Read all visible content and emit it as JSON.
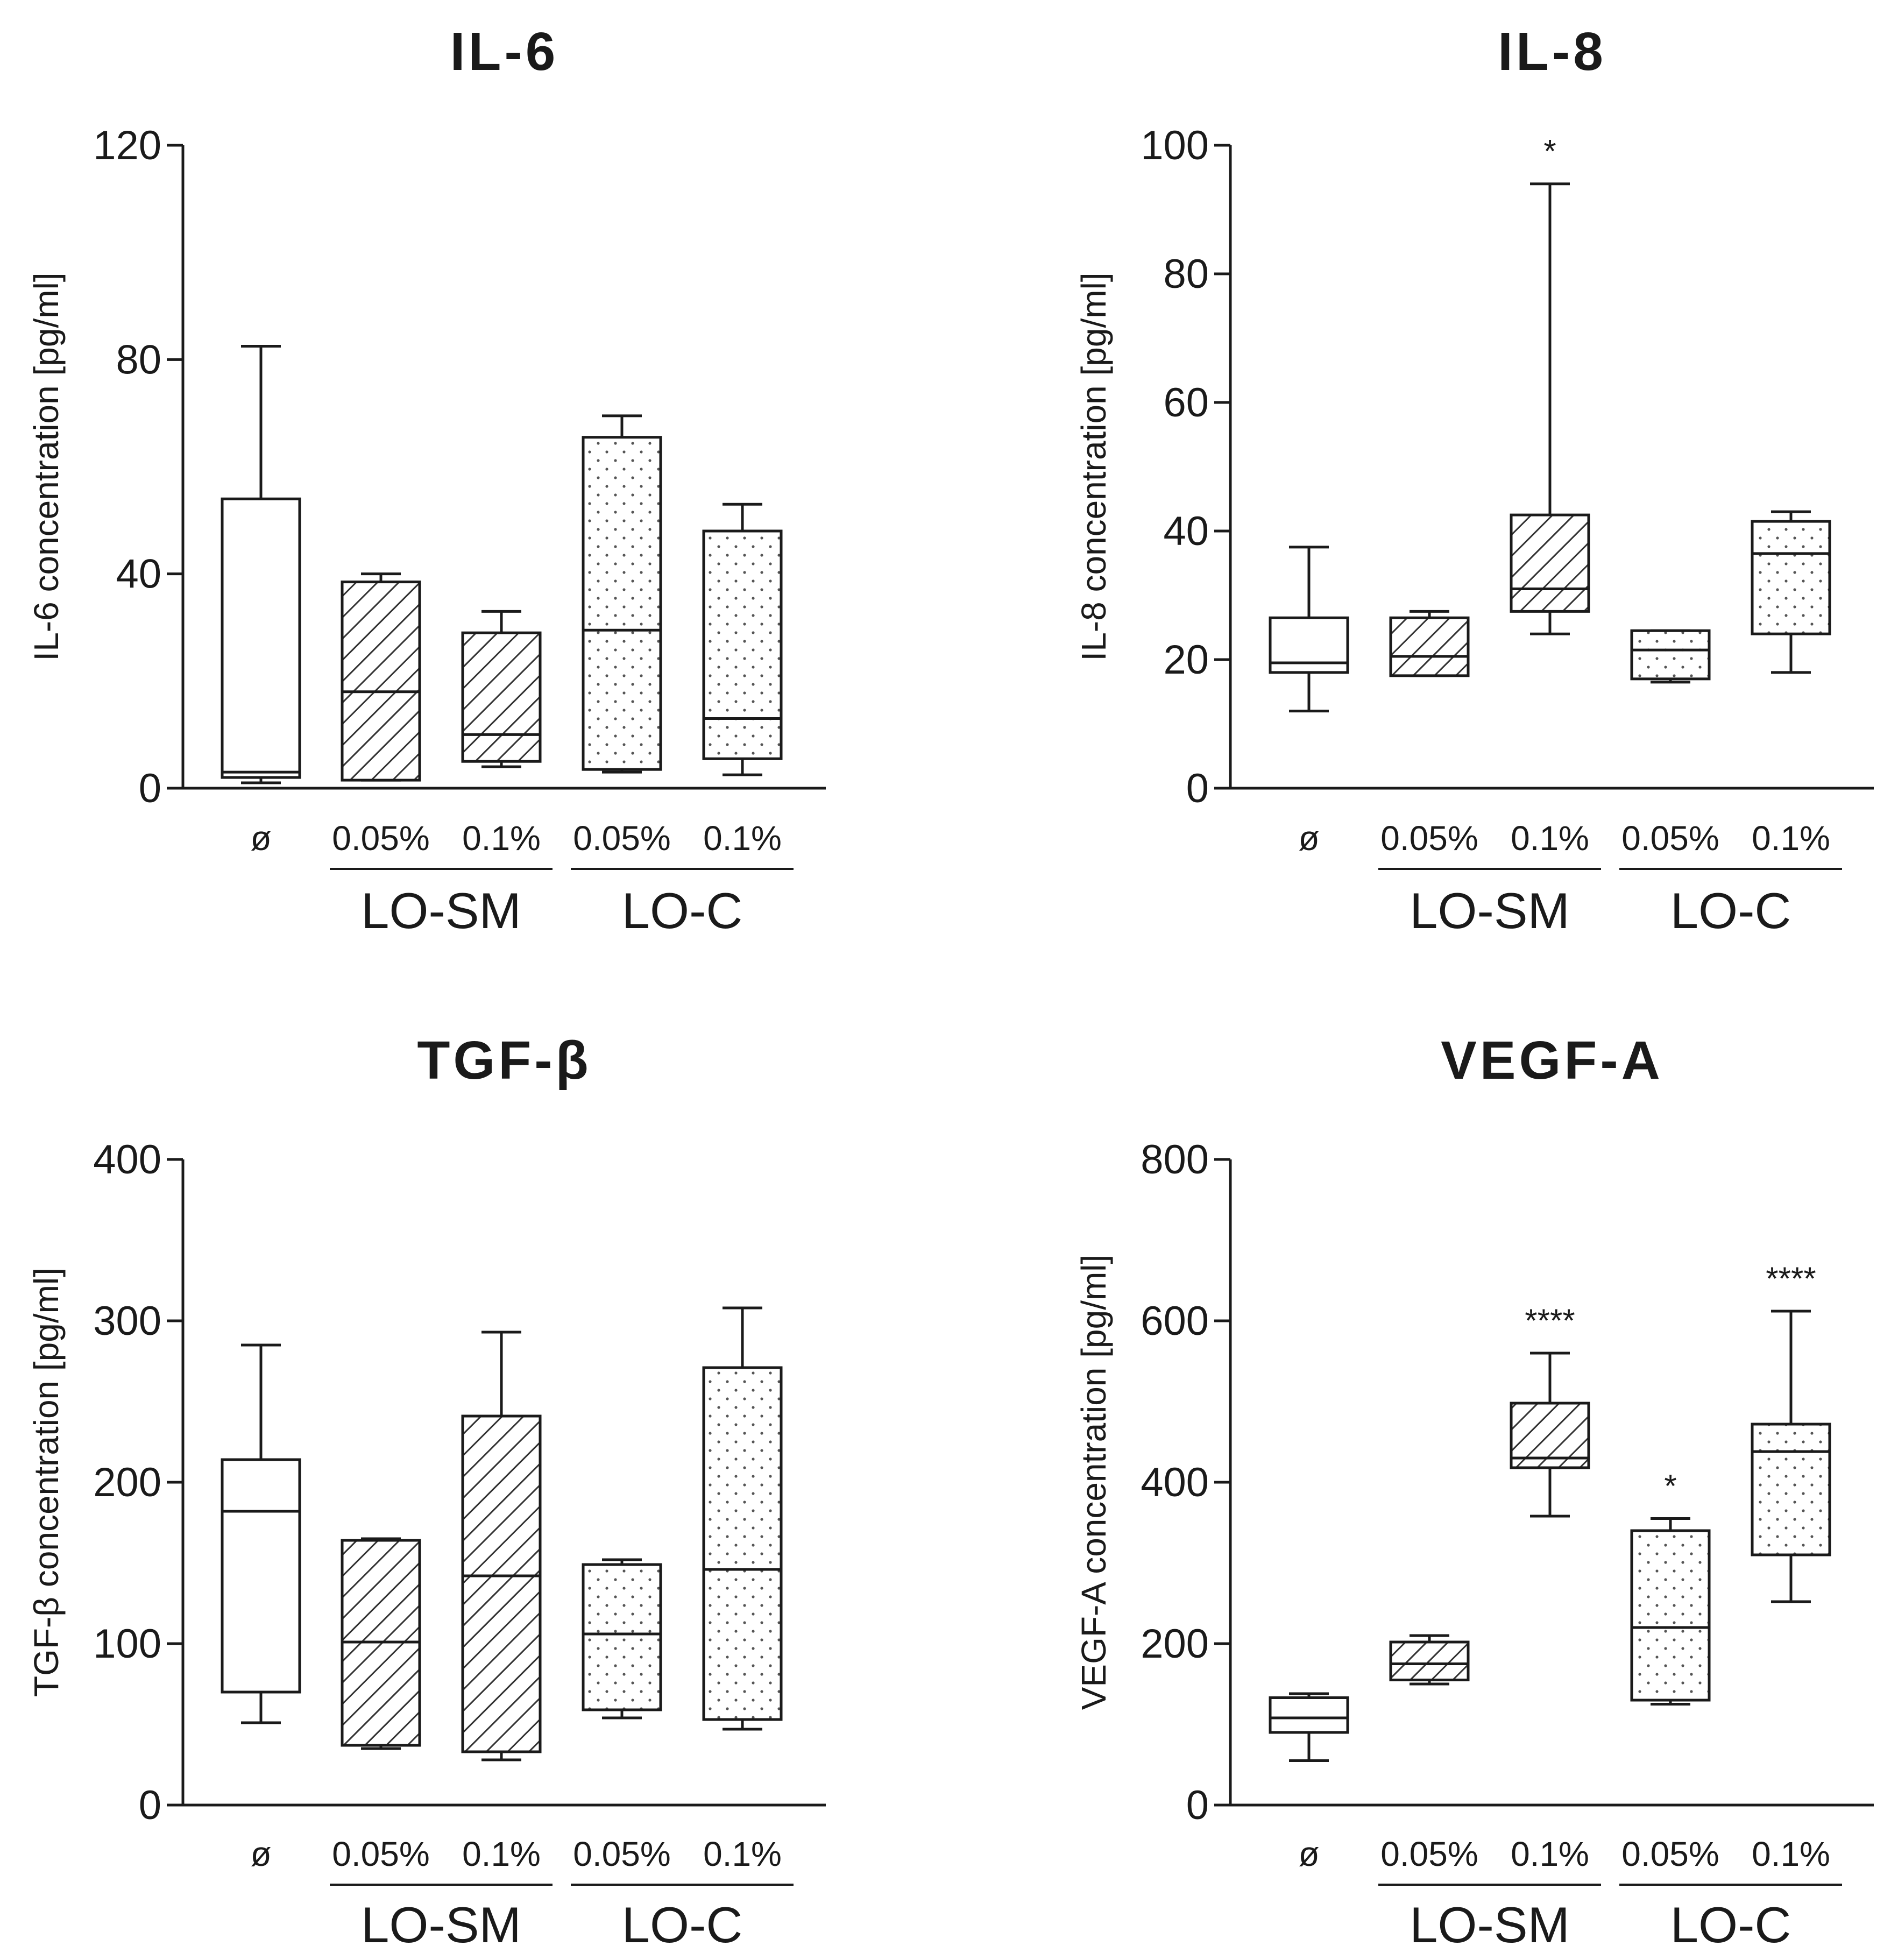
{
  "colors": {
    "ink": "#1a1a1a",
    "background": "#ffffff"
  },
  "chart_data": [
    {
      "type": "box",
      "title": "IL-6",
      "ylabel": "IL-6 concentration [pg/ml]",
      "ylim": [
        0,
        120
      ],
      "yticks": [
        0,
        40,
        80,
        120
      ],
      "categories": [
        "ø",
        "0.05%",
        "0.1%",
        "0.05%",
        "0.1%"
      ],
      "groups": [
        {
          "label": "LO-SM",
          "members": [
            1,
            2
          ]
        },
        {
          "label": "LO-C",
          "members": [
            3,
            4
          ]
        }
      ],
      "boxes": [
        {
          "category": "ø",
          "min": 1,
          "q1": 2,
          "median": 3,
          "q3": 54,
          "max": 82.5,
          "pattern": "none",
          "sig": ""
        },
        {
          "category": "0.05%",
          "group": "LO-SM",
          "min": 1.5,
          "q1": 1.5,
          "median": 18,
          "q3": 38.5,
          "max": 40,
          "pattern": "hatch",
          "sig": ""
        },
        {
          "category": "0.1%",
          "group": "LO-SM",
          "min": 4,
          "q1": 5,
          "median": 10,
          "q3": 29,
          "max": 33,
          "pattern": "hatch",
          "sig": ""
        },
        {
          "category": "0.05%",
          "group": "LO-C",
          "min": 3,
          "q1": 3.5,
          "median": 29.5,
          "q3": 65.5,
          "max": 69.5,
          "pattern": "dots",
          "sig": ""
        },
        {
          "category": "0.1%",
          "group": "LO-C",
          "min": 2.5,
          "q1": 5.5,
          "median": 13,
          "q3": 48,
          "max": 53,
          "pattern": "dots",
          "sig": ""
        }
      ]
    },
    {
      "type": "box",
      "title": "IL-8",
      "ylabel": "IL-8 concentration [pg/ml]",
      "ylim": [
        0,
        100
      ],
      "yticks": [
        0,
        20,
        40,
        60,
        80,
        100
      ],
      "categories": [
        "ø",
        "0.05%",
        "0.1%",
        "0.05%",
        "0.1%"
      ],
      "groups": [
        {
          "label": "LO-SM",
          "members": [
            1,
            2
          ]
        },
        {
          "label": "LO-C",
          "members": [
            3,
            4
          ]
        }
      ],
      "boxes": [
        {
          "category": "ø",
          "min": 12,
          "q1": 18,
          "median": 19.5,
          "q3": 26.5,
          "max": 37.5,
          "pattern": "none",
          "sig": ""
        },
        {
          "category": "0.05%",
          "group": "LO-SM",
          "min": 17.5,
          "q1": 17.5,
          "median": 20.5,
          "q3": 26.5,
          "max": 27.5,
          "pattern": "hatch",
          "sig": ""
        },
        {
          "category": "0.1%",
          "group": "LO-SM",
          "min": 24,
          "q1": 27.5,
          "median": 31,
          "q3": 42.5,
          "max": 94,
          "pattern": "hatch",
          "sig": "*"
        },
        {
          "category": "0.05%",
          "group": "LO-C",
          "min": 16.5,
          "q1": 17,
          "median": 21.5,
          "q3": 24.5,
          "max": 24.5,
          "pattern": "dots",
          "sig": ""
        },
        {
          "category": "0.1%",
          "group": "LO-C",
          "min": 18,
          "q1": 24,
          "median": 36.5,
          "q3": 41.5,
          "max": 43,
          "pattern": "dots",
          "sig": ""
        }
      ]
    },
    {
      "type": "box",
      "title": "TGF-β",
      "ylabel": "TGF-β concentration [pg/ml]",
      "ylim": [
        0,
        400
      ],
      "yticks": [
        0,
        100,
        200,
        300,
        400
      ],
      "categories": [
        "ø",
        "0.05%",
        "0.1%",
        "0.05%",
        "0.1%"
      ],
      "groups": [
        {
          "label": "LO-SM",
          "members": [
            1,
            2
          ]
        },
        {
          "label": "LO-C",
          "members": [
            3,
            4
          ]
        }
      ],
      "boxes": [
        {
          "category": "ø",
          "min": 51,
          "q1": 70,
          "median": 182,
          "q3": 214,
          "max": 285,
          "pattern": "none",
          "sig": ""
        },
        {
          "category": "0.05%",
          "group": "LO-SM",
          "min": 35,
          "q1": 37,
          "median": 101,
          "q3": 164,
          "max": 165,
          "pattern": "hatch",
          "sig": ""
        },
        {
          "category": "0.1%",
          "group": "LO-SM",
          "min": 28,
          "q1": 33,
          "median": 142,
          "q3": 241,
          "max": 293,
          "pattern": "hatch",
          "sig": ""
        },
        {
          "category": "0.05%",
          "group": "LO-C",
          "min": 54,
          "q1": 59,
          "median": 106,
          "q3": 149,
          "max": 152,
          "pattern": "dots",
          "sig": ""
        },
        {
          "category": "0.1%",
          "group": "LO-C",
          "min": 47,
          "q1": 53,
          "median": 146,
          "q3": 271,
          "max": 308,
          "pattern": "dots",
          "sig": ""
        }
      ]
    },
    {
      "type": "box",
      "title": "VEGF-A",
      "ylabel": "VEGF-A concentration [pg/ml]",
      "ylim": [
        0,
        800
      ],
      "yticks": [
        0,
        200,
        400,
        600,
        800
      ],
      "categories": [
        "ø",
        "0.05%",
        "0.1%",
        "0.05%",
        "0.1%"
      ],
      "groups": [
        {
          "label": "LO-SM",
          "members": [
            1,
            2
          ]
        },
        {
          "label": "LO-C",
          "members": [
            3,
            4
          ]
        }
      ],
      "boxes": [
        {
          "category": "ø",
          "min": 55,
          "q1": 90,
          "median": 108,
          "q3": 133,
          "max": 138,
          "pattern": "none",
          "sig": ""
        },
        {
          "category": "0.05%",
          "group": "LO-SM",
          "min": 150,
          "q1": 155,
          "median": 175,
          "q3": 202,
          "max": 210,
          "pattern": "hatch",
          "sig": ""
        },
        {
          "category": "0.1%",
          "group": "LO-SM",
          "min": 358,
          "q1": 418,
          "median": 430,
          "q3": 498,
          "max": 560,
          "pattern": "hatch",
          "sig": "****"
        },
        {
          "category": "0.05%",
          "group": "LO-C",
          "min": 125,
          "q1": 130,
          "median": 220,
          "q3": 340,
          "max": 355,
          "pattern": "dots",
          "sig": "*"
        },
        {
          "category": "0.1%",
          "group": "LO-C",
          "min": 252,
          "q1": 310,
          "median": 438,
          "q3": 472,
          "max": 612,
          "pattern": "dots",
          "sig": "****"
        }
      ]
    }
  ]
}
